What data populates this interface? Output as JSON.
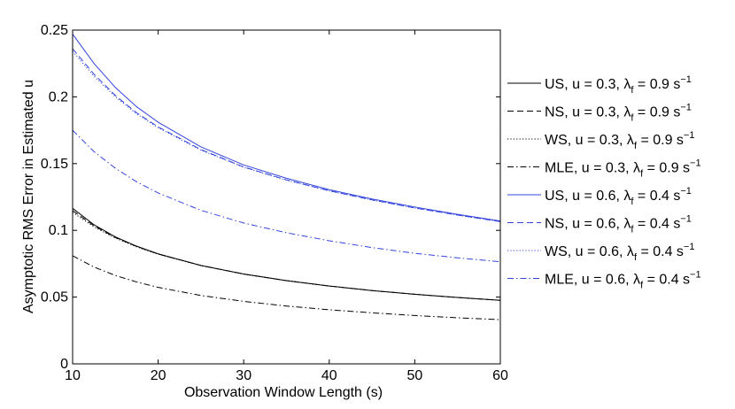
{
  "chart_data": {
    "type": "line",
    "title": "",
    "xlabel": "Observation Window Length (s)",
    "ylabel": "Asymptotic RMS Error in Estimated u",
    "xlim": [
      10,
      60
    ],
    "ylim": [
      0,
      0.25
    ],
    "xticks": [
      "10",
      "20",
      "30",
      "40",
      "50",
      "60"
    ],
    "yticks": [
      "0",
      "0.05",
      "0.1",
      "0.15",
      "0.2",
      "0.25"
    ],
    "grid": false,
    "legend_position": "outside-right",
    "x": [
      10,
      12.5,
      15,
      17.5,
      20,
      25,
      30,
      35,
      40,
      45,
      50,
      55,
      60
    ],
    "series": [
      {
        "name": "US, u = 0.3, λf = 0.9 s−1",
        "legend": {
          "main": "US, u = 0.3, λ",
          "sub": "f",
          "rest": " = 0.9 s",
          "sup": "−1"
        },
        "color": "#000000",
        "dash": "solid",
        "values": [
          0.1165,
          0.1042,
          0.0951,
          0.0881,
          0.0824,
          0.0737,
          0.0673,
          0.0623,
          0.0583,
          0.0549,
          0.0521,
          0.0497,
          0.0476
        ]
      },
      {
        "name": "NS, u = 0.3, λf = 0.9 s−1",
        "legend": {
          "main": "NS, u = 0.3, λ",
          "sub": "f",
          "rest": " = 0.9 s",
          "sup": "−1"
        },
        "color": "#000000",
        "dash": "dashed",
        "values": [
          0.1148,
          0.1034,
          0.0947,
          0.0879,
          0.0823,
          0.0737,
          0.0673,
          0.0623,
          0.0583,
          0.0549,
          0.0521,
          0.0497,
          0.0476
        ]
      },
      {
        "name": "WS, u = 0.3, λf = 0.9 s−1",
        "legend": {
          "main": "WS, u = 0.3, λ",
          "sub": "f",
          "rest": " = 0.9 s",
          "sup": "−1"
        },
        "color": "#000000",
        "dash": "dotted",
        "values": [
          0.1135,
          0.1026,
          0.0942,
          0.0876,
          0.0821,
          0.0736,
          0.0672,
          0.0623,
          0.0583,
          0.0549,
          0.0521,
          0.0497,
          0.0476
        ]
      },
      {
        "name": "MLE, u = 0.3, λf = 0.9 s−1",
        "legend": {
          "main": "MLE, u = 0.3, λ",
          "sub": "f",
          "rest": " = 0.9 s",
          "sup": "−1"
        },
        "color": "#000000",
        "dash": "dashdot",
        "values": [
          0.081,
          0.0725,
          0.0662,
          0.0613,
          0.0573,
          0.0512,
          0.0468,
          0.0433,
          0.0405,
          0.0382,
          0.0362,
          0.0345,
          0.0331
        ]
      },
      {
        "name": "US, u = 0.6, λf = 0.4 s−1",
        "legend": {
          "main": "US, u = 0.6, λ",
          "sub": "f",
          "rest": " = 0.4 s",
          "sup": "−1"
        },
        "color": "#3344dd",
        "dash": "solid",
        "values": [
          0.247,
          0.225,
          0.207,
          0.1925,
          0.181,
          0.1625,
          0.149,
          0.139,
          0.1305,
          0.1235,
          0.1175,
          0.112,
          0.107
        ]
      },
      {
        "name": "NS, u = 0.6, λf = 0.4 s−1",
        "legend": {
          "main": "NS, u = 0.6, λ",
          "sub": "f",
          "rest": " = 0.4 s",
          "sup": "−1"
        },
        "color": "#3344dd",
        "dash": "dashed",
        "values": [
          0.236,
          0.217,
          0.201,
          0.188,
          0.1775,
          0.1605,
          0.1475,
          0.1378,
          0.1297,
          0.1228,
          0.1168,
          0.1115,
          0.1065
        ]
      },
      {
        "name": "WS, u = 0.6, λf = 0.4 s−1",
        "legend": {
          "main": "WS, u = 0.6, λ",
          "sub": "f",
          "rest": " = 0.4 s",
          "sup": "−1"
        },
        "color": "#3344dd",
        "dash": "dotted",
        "values": [
          0.234,
          0.2155,
          0.2,
          0.1872,
          0.1769,
          0.1601,
          0.1472,
          0.1376,
          0.1295,
          0.1227,
          0.1167,
          0.1114,
          0.1065
        ]
      },
      {
        "name": "MLE, u = 0.6, λf = 0.4 s−1",
        "legend": {
          "main": "MLE, u = 0.6, λ",
          "sub": "f",
          "rest": " = 0.4 s",
          "sup": "−1"
        },
        "color": "#3344dd",
        "dash": "dashdot",
        "values": [
          0.175,
          0.159,
          0.1465,
          0.1363,
          0.128,
          0.115,
          0.1055,
          0.0982,
          0.0922,
          0.0871,
          0.0828,
          0.0794,
          0.0765
        ]
      }
    ]
  }
}
